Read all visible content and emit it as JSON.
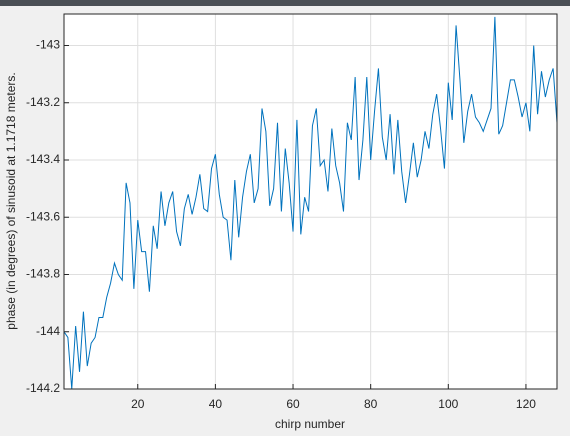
{
  "chart_data": {
    "type": "line",
    "xlabel": "chirp number",
    "ylabel": "phase (in degrees) of sinusoid at 1.1718  meters.",
    "x": [
      1,
      2,
      3,
      4,
      5,
      6,
      7,
      8,
      9,
      10,
      11,
      12,
      13,
      14,
      15,
      16,
      17,
      18,
      19,
      20,
      21,
      22,
      23,
      24,
      25,
      26,
      27,
      28,
      29,
      30,
      31,
      32,
      33,
      34,
      35,
      36,
      37,
      38,
      39,
      40,
      41,
      42,
      43,
      44,
      45,
      46,
      47,
      48,
      49,
      50,
      51,
      52,
      53,
      54,
      55,
      56,
      57,
      58,
      59,
      60,
      61,
      62,
      63,
      64,
      65,
      66,
      67,
      68,
      69,
      70,
      71,
      72,
      73,
      74,
      75,
      76,
      77,
      78,
      79,
      80,
      81,
      82,
      83,
      84,
      85,
      86,
      87,
      88,
      89,
      90,
      91,
      92,
      93,
      94,
      95,
      96,
      97,
      98,
      99,
      100,
      101,
      102,
      103,
      104,
      105,
      106,
      107,
      108,
      109,
      110,
      111,
      112,
      113,
      114,
      115,
      116,
      117,
      118,
      119,
      120,
      121,
      122,
      123,
      124,
      125,
      126,
      127,
      128
    ],
    "values": [
      -144.0,
      -144.02,
      -144.2,
      -143.98,
      -144.14,
      -143.93,
      -144.12,
      -144.04,
      -144.02,
      -143.95,
      -143.95,
      -143.88,
      -143.83,
      -143.76,
      -143.8,
      -143.82,
      -143.48,
      -143.55,
      -143.85,
      -143.61,
      -143.72,
      -143.72,
      -143.86,
      -143.63,
      -143.71,
      -143.51,
      -143.63,
      -143.55,
      -143.51,
      -143.65,
      -143.7,
      -143.57,
      -143.52,
      -143.59,
      -143.53,
      -143.45,
      -143.57,
      -143.58,
      -143.43,
      -143.38,
      -143.52,
      -143.6,
      -143.61,
      -143.75,
      -143.47,
      -143.67,
      -143.53,
      -143.44,
      -143.38,
      -143.55,
      -143.5,
      -143.22,
      -143.3,
      -143.56,
      -143.5,
      -143.27,
      -143.58,
      -143.36,
      -143.48,
      -143.65,
      -143.26,
      -143.66,
      -143.53,
      -143.58,
      -143.28,
      -143.22,
      -143.42,
      -143.4,
      -143.51,
      -143.29,
      -143.42,
      -143.48,
      -143.58,
      -143.27,
      -143.33,
      -143.11,
      -143.47,
      -143.33,
      -143.11,
      -143.4,
      -143.23,
      -143.08,
      -143.32,
      -143.4,
      -143.24,
      -143.45,
      -143.26,
      -143.44,
      -143.55,
      -143.45,
      -143.34,
      -143.46,
      -143.4,
      -143.3,
      -143.36,
      -143.24,
      -143.17,
      -143.29,
      -143.43,
      -143.13,
      -143.26,
      -142.93,
      -143.12,
      -143.34,
      -143.23,
      -143.17,
      -143.25,
      -143.27,
      -143.3,
      -143.26,
      -143.22,
      -142.9,
      -143.31,
      -143.28,
      -143.2,
      -143.12,
      -143.12,
      -143.18,
      -143.25,
      -143.2,
      -143.3,
      -143.0,
      -143.24,
      -143.09,
      -143.18,
      -143.12,
      -143.08,
      -143.27
    ],
    "color": "#0072bd",
    "xlim": [
      1,
      128
    ],
    "xticks": [
      20,
      40,
      60,
      80,
      100,
      120
    ],
    "ylim": [
      -144.2,
      -142.89
    ],
    "yticks": [
      -144.2,
      -144,
      -143.8,
      -143.6,
      -143.4,
      -143.2,
      -143
    ],
    "grid": true
  }
}
